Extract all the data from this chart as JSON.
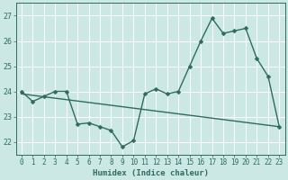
{
  "title": "",
  "xlabel": "Humidex (Indice chaleur)",
  "background_color": "#cce8e4",
  "grid_color": "#ffffff",
  "line_color": "#2e6b5e",
  "xlim": [
    -0.5,
    23.5
  ],
  "ylim": [
    21.5,
    27.5
  ],
  "yticks": [
    22,
    23,
    24,
    25,
    26,
    27
  ],
  "xticks": [
    0,
    1,
    2,
    3,
    4,
    5,
    6,
    7,
    8,
    9,
    10,
    11,
    12,
    13,
    14,
    15,
    16,
    17,
    18,
    19,
    20,
    21,
    22,
    23
  ],
  "data_x": [
    0,
    1,
    2,
    3,
    4,
    5,
    6,
    7,
    8,
    9,
    10,
    11,
    12,
    13,
    14,
    15,
    16,
    17,
    18,
    19,
    20,
    21,
    22,
    23
  ],
  "data_y": [
    24.0,
    23.6,
    23.8,
    24.0,
    24.0,
    22.7,
    22.75,
    22.6,
    22.45,
    21.8,
    22.05,
    23.9,
    24.1,
    23.9,
    24.0,
    25.0,
    26.0,
    26.9,
    26.3,
    26.4,
    26.5,
    25.3,
    24.6,
    22.6
  ],
  "trend_x": [
    0,
    23
  ],
  "trend_y": [
    23.9,
    22.6
  ],
  "marker_size": 2.5,
  "linewidth": 1.0,
  "xlabel_fontsize": 6.5,
  "tick_fontsize": 5.5
}
